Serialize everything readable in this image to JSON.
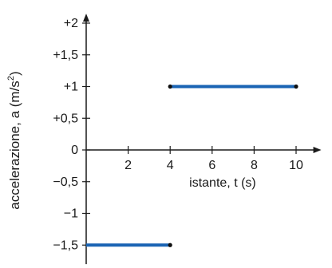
{
  "chart_data": {
    "type": "line",
    "title": "",
    "xlabel": "istante, t (s)",
    "ylabel": "accelerazione, a (m/s²)",
    "ylabel_parts": {
      "main": "accelerazione, a (m/s",
      "sup": "2",
      "end": ")"
    },
    "xlim": [
      0,
      11.2
    ],
    "ylim": [
      -1.8,
      2.15
    ],
    "x_ticks": [
      {
        "value": 2,
        "label": "2"
      },
      {
        "value": 4,
        "label": "4"
      },
      {
        "value": 6,
        "label": "6"
      },
      {
        "value": 8,
        "label": "8"
      },
      {
        "value": 10,
        "label": "10"
      }
    ],
    "y_ticks": [
      {
        "value": 2,
        "label": "+2"
      },
      {
        "value": 1.5,
        "label": "+1,5"
      },
      {
        "value": 1,
        "label": "+1"
      },
      {
        "value": 0.5,
        "label": "+0,5"
      },
      {
        "value": 0,
        "label": "0"
      },
      {
        "value": -0.5,
        "label": "−0,5"
      },
      {
        "value": -1,
        "label": "−1"
      },
      {
        "value": -1.5,
        "label": "−1,5"
      }
    ],
    "grid": false,
    "series": [
      {
        "color": "#1a64b4",
        "segments": [
          {
            "x": [
              0,
              4
            ],
            "y": [
              -1.5,
              -1.5
            ]
          },
          {
            "x": [
              4,
              10
            ],
            "y": [
              1,
              1
            ]
          }
        ]
      }
    ]
  }
}
